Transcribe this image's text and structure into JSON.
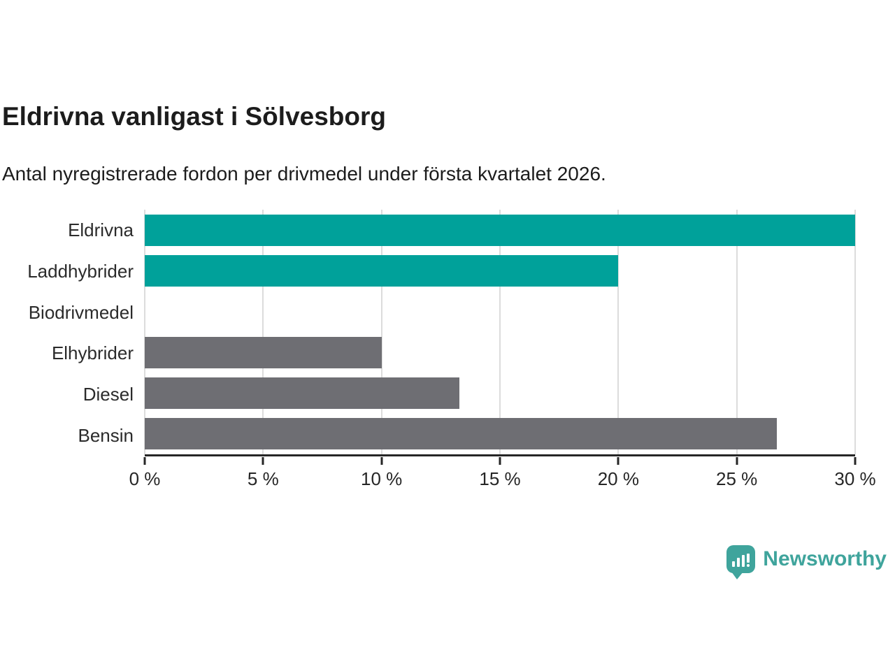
{
  "header": {
    "title": "Eldrivna vanligast i Sölvesborg",
    "subtitle": "Antal nyregistrerade fordon per drivmedel under första kvartalet 2026."
  },
  "chart_data": {
    "type": "bar",
    "orientation": "horizontal",
    "title": "Eldrivna vanligast i Sölvesborg",
    "subtitle": "Antal nyregistrerade fordon per drivmedel under första kvartalet 2026.",
    "categories": [
      "Eldrivna",
      "Laddhybrider",
      "Biodrivmedel",
      "Elhybrider",
      "Diesel",
      "Bensin"
    ],
    "values": [
      30,
      20,
      0,
      10,
      13.3,
      26.7
    ],
    "unit": "%",
    "bar_colors": [
      "#00a19a",
      "#00a19a",
      "#6e6e73",
      "#6e6e73",
      "#6e6e73",
      "#6e6e73"
    ],
    "highlight_color": "#00a19a",
    "default_color": "#6e6e73",
    "xlim": [
      0,
      30
    ],
    "xticks": [
      0,
      5,
      10,
      15,
      20,
      25,
      30
    ],
    "xtick_suffix": " %",
    "grid": true,
    "legend_position": "none"
  },
  "branding": {
    "logo_text": "Newsworthy",
    "logo_icon": "newsworthy-speech-bubble-bar-chart",
    "logo_color": "#3fa49c"
  },
  "colors": {
    "background": "#ffffff",
    "text": "#1c1c1c",
    "category_label": "#2b2b2b",
    "axis": "#262626",
    "gridline": "#dcdcdc"
  }
}
